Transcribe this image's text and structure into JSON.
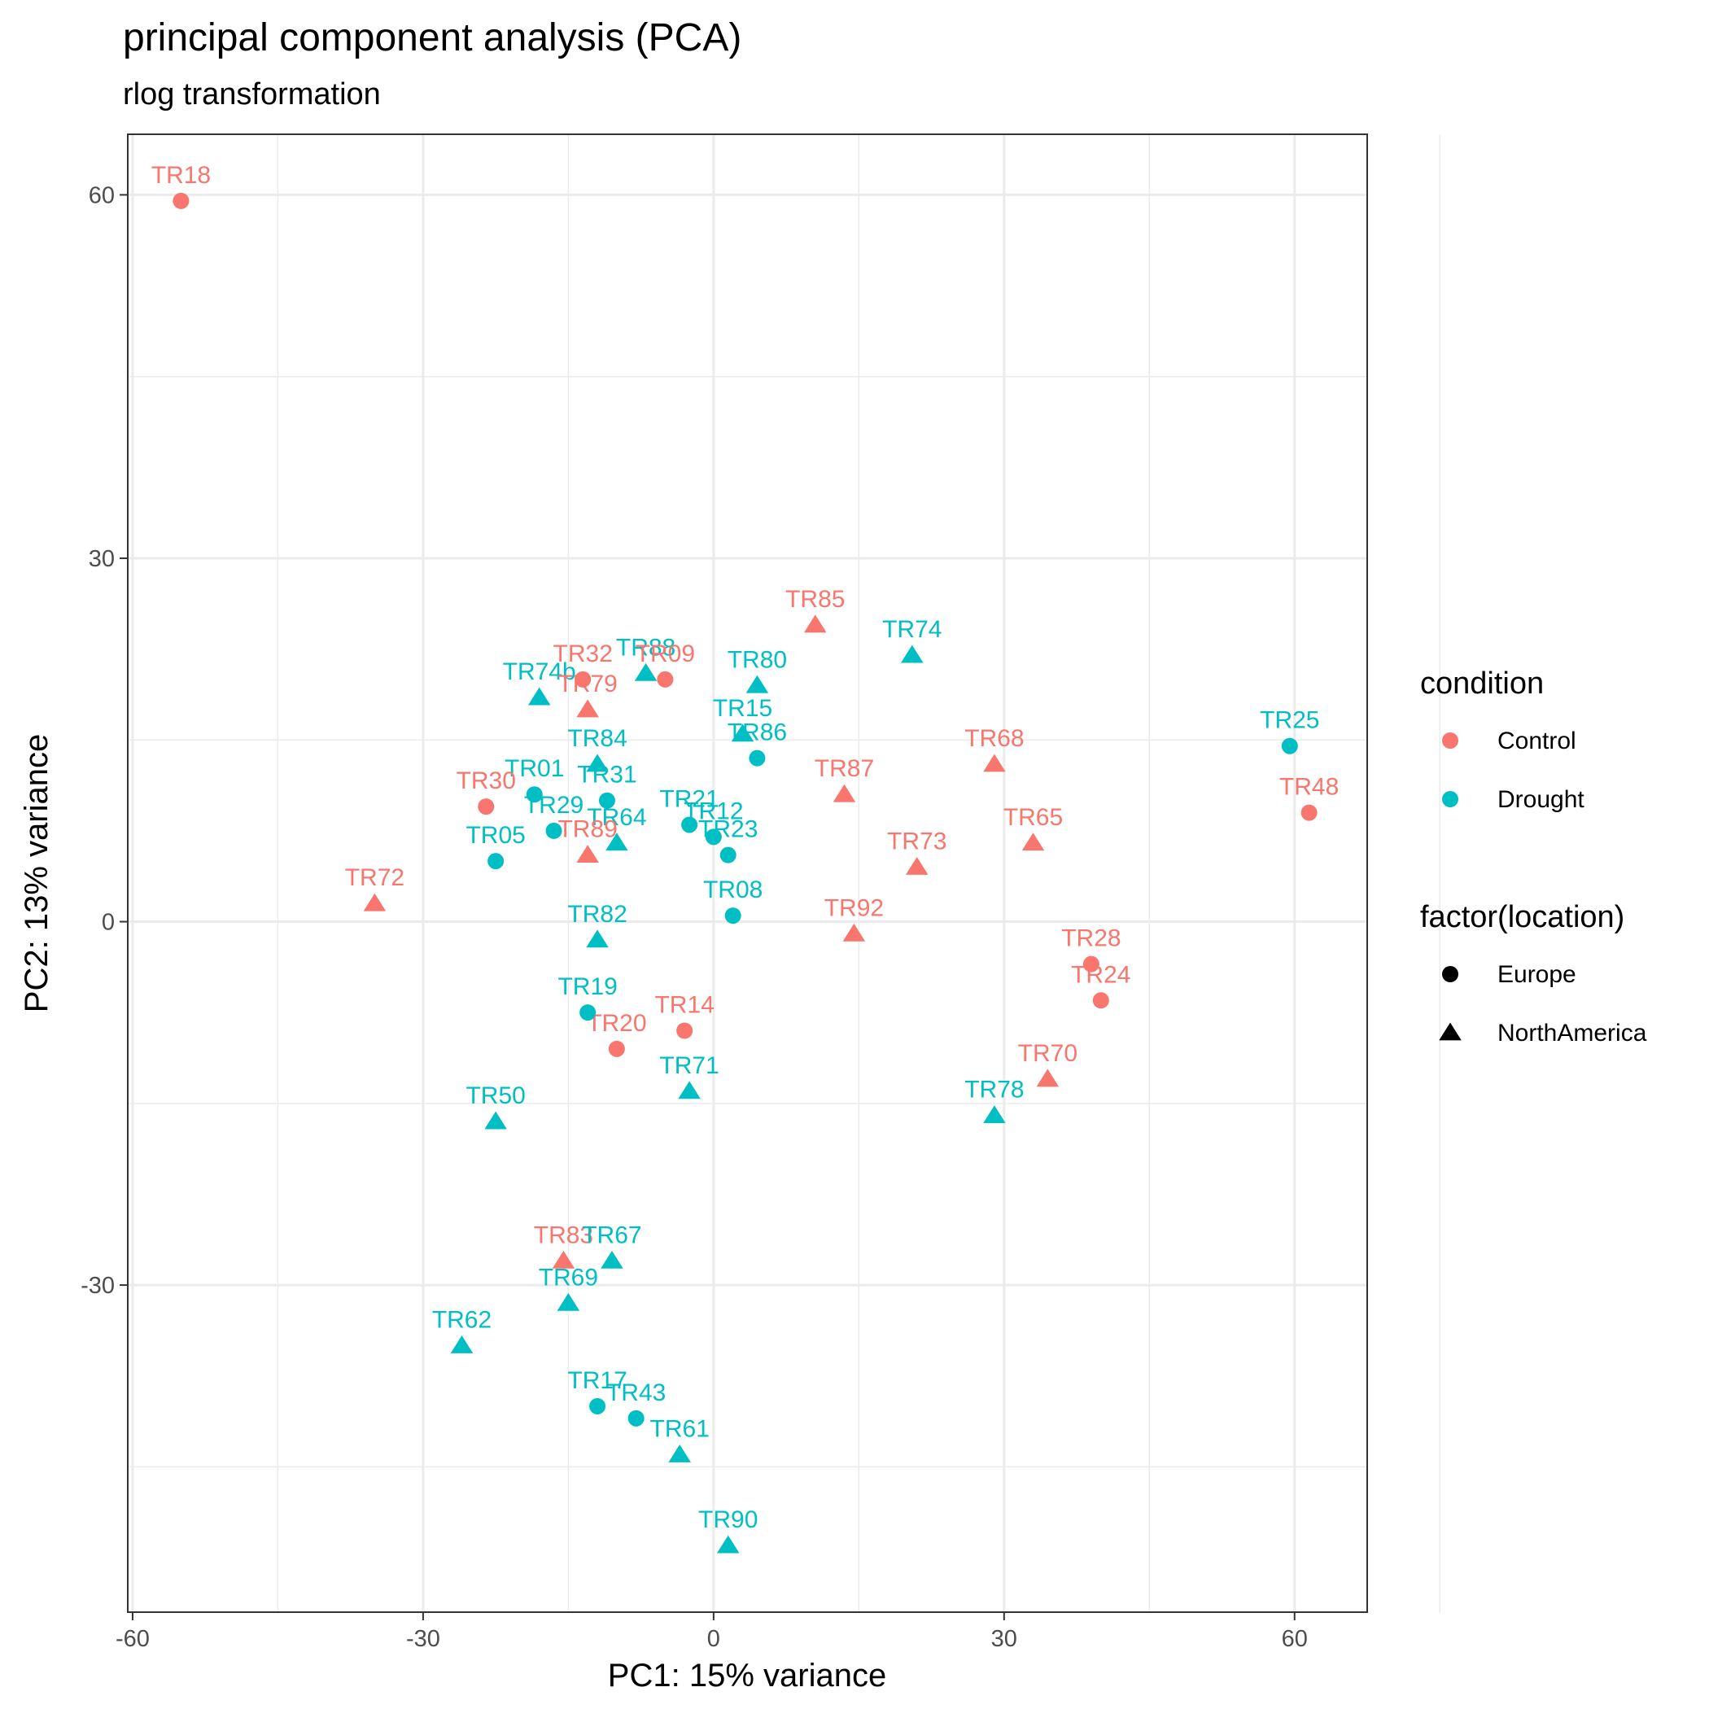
{
  "colors": {
    "Control": "#F8766D",
    "Drought": "#00BFC4"
  },
  "chart_data": {
    "type": "scatter",
    "title": "principal component analysis (PCA)",
    "subtitle": "rlog transformation",
    "xlabel": "PC1: 15% variance",
    "ylabel": "PC2: 13% variance",
    "xlim": [
      -60.5,
      67.5
    ],
    "ylim": [
      -57,
      65
    ],
    "xticks": [
      -60,
      -30,
      0,
      30,
      60
    ],
    "yticks": [
      -30,
      0,
      30,
      60
    ],
    "xtick_labels": [
      "-60",
      "-30",
      "0",
      "30",
      "60"
    ],
    "ytick_labels": [
      "-30",
      "0",
      "30",
      "60"
    ],
    "grid": true,
    "legend_position": "right",
    "legends": [
      {
        "title": "condition",
        "items": [
          {
            "label": "Control",
            "key": "Control"
          },
          {
            "label": "Drought",
            "key": "Drought"
          }
        ]
      },
      {
        "title": "factor(location)",
        "items": [
          {
            "label": "Europe",
            "shape": "circle"
          },
          {
            "label": "NorthAmerica",
            "shape": "triangle"
          }
        ]
      }
    ],
    "points": [
      {
        "label": "TR18",
        "x": -55.0,
        "y": 59.5,
        "condition": "Control",
        "location": "Europe"
      },
      {
        "label": "TR85",
        "x": 10.5,
        "y": 24.5,
        "condition": "Control",
        "location": "NorthAmerica"
      },
      {
        "label": "TR74",
        "x": 20.5,
        "y": 22.0,
        "condition": "Drought",
        "location": "NorthAmerica"
      },
      {
        "label": "TR32",
        "x": -13.5,
        "y": 20.0,
        "condition": "Control",
        "location": "Europe"
      },
      {
        "label": "TR88",
        "x": -7.0,
        "y": 20.5,
        "condition": "Drought",
        "location": "NorthAmerica"
      },
      {
        "label": "TR09",
        "x": -5.0,
        "y": 20.0,
        "condition": "Control",
        "location": "Europe"
      },
      {
        "label": "TR80",
        "x": 4.5,
        "y": 19.5,
        "condition": "Drought",
        "location": "NorthAmerica"
      },
      {
        "label": "TR74b",
        "x": -18.0,
        "y": 18.5,
        "condition": "Drought",
        "location": "NorthAmerica"
      },
      {
        "label": "TR79",
        "x": -13.0,
        "y": 17.5,
        "condition": "Control",
        "location": "NorthAmerica"
      },
      {
        "label": "TR15",
        "x": 3.0,
        "y": 15.5,
        "condition": "Drought",
        "location": "NorthAmerica"
      },
      {
        "label": "TR25",
        "x": 59.5,
        "y": 14.5,
        "condition": "Drought",
        "location": "Europe"
      },
      {
        "label": "TR86",
        "x": 4.5,
        "y": 13.5,
        "condition": "Drought",
        "location": "Europe"
      },
      {
        "label": "TR84",
        "x": -12.0,
        "y": 13.0,
        "condition": "Drought",
        "location": "NorthAmerica"
      },
      {
        "label": "TR68",
        "x": 29.0,
        "y": 13.0,
        "condition": "Control",
        "location": "NorthAmerica"
      },
      {
        "label": "TR87",
        "x": 13.5,
        "y": 10.5,
        "condition": "Control",
        "location": "NorthAmerica"
      },
      {
        "label": "TR01",
        "x": -18.5,
        "y": 10.5,
        "condition": "Drought",
        "location": "Europe"
      },
      {
        "label": "TR31",
        "x": -11.0,
        "y": 10.0,
        "condition": "Drought",
        "location": "Europe"
      },
      {
        "label": "TR30",
        "x": -23.5,
        "y": 9.5,
        "condition": "Control",
        "location": "Europe"
      },
      {
        "label": "TR48",
        "x": 61.5,
        "y": 9.0,
        "condition": "Control",
        "location": "Europe"
      },
      {
        "label": "TR21",
        "x": -2.5,
        "y": 8.0,
        "condition": "Drought",
        "location": "Europe"
      },
      {
        "label": "TR29",
        "x": -16.5,
        "y": 7.5,
        "condition": "Drought",
        "location": "Europe"
      },
      {
        "label": "TR12",
        "x": 0.0,
        "y": 7.0,
        "condition": "Drought",
        "location": "Europe"
      },
      {
        "label": "TR65",
        "x": 33.0,
        "y": 6.5,
        "condition": "Control",
        "location": "NorthAmerica"
      },
      {
        "label": "TR64",
        "x": -10.0,
        "y": 6.5,
        "condition": "Drought",
        "location": "NorthAmerica"
      },
      {
        "label": "TR89",
        "x": -13.0,
        "y": 5.5,
        "condition": "Control",
        "location": "NorthAmerica"
      },
      {
        "label": "TR05",
        "x": -22.5,
        "y": 5.0,
        "condition": "Drought",
        "location": "Europe"
      },
      {
        "label": "TR73",
        "x": 21.0,
        "y": 4.5,
        "condition": "Control",
        "location": "NorthAmerica"
      },
      {
        "label": "TR72",
        "x": -35.0,
        "y": 1.5,
        "condition": "Control",
        "location": "NorthAmerica"
      },
      {
        "label": "TR08",
        "x": 2.0,
        "y": 0.5,
        "condition": "Drought",
        "location": "Europe"
      },
      {
        "label": "TR23",
        "x": 1.5,
        "y": 5.5,
        "condition": "Drought",
        "location": "Europe"
      },
      {
        "label": "TR92",
        "x": 14.5,
        "y": -1.0,
        "condition": "Control",
        "location": "NorthAmerica"
      },
      {
        "label": "TR82",
        "x": -12.0,
        "y": -1.5,
        "condition": "Drought",
        "location": "NorthAmerica"
      },
      {
        "label": "TR28",
        "x": 39.0,
        "y": -3.5,
        "condition": "Control",
        "location": "Europe"
      },
      {
        "label": "TR24",
        "x": 40.0,
        "y": -6.5,
        "condition": "Control",
        "location": "Europe"
      },
      {
        "label": "TR19",
        "x": -13.0,
        "y": -7.5,
        "condition": "Drought",
        "location": "Europe"
      },
      {
        "label": "TR14",
        "x": -3.0,
        "y": -9.0,
        "condition": "Control",
        "location": "Europe"
      },
      {
        "label": "TR20",
        "x": -10.0,
        "y": -10.5,
        "condition": "Control",
        "location": "Europe"
      },
      {
        "label": "TR70",
        "x": 34.5,
        "y": -13.0,
        "condition": "Control",
        "location": "NorthAmerica"
      },
      {
        "label": "TR71",
        "x": -2.5,
        "y": -14.0,
        "condition": "Drought",
        "location": "NorthAmerica"
      },
      {
        "label": "TR78",
        "x": 29.0,
        "y": -16.0,
        "condition": "Drought",
        "location": "NorthAmerica"
      },
      {
        "label": "TR50",
        "x": -22.5,
        "y": -16.5,
        "condition": "Drought",
        "location": "NorthAmerica"
      },
      {
        "label": "TR83",
        "x": -15.5,
        "y": -28.0,
        "condition": "Control",
        "location": "NorthAmerica"
      },
      {
        "label": "TR67",
        "x": -10.5,
        "y": -28.0,
        "condition": "Drought",
        "location": "NorthAmerica"
      },
      {
        "label": "TR69",
        "x": -15.0,
        "y": -31.5,
        "condition": "Drought",
        "location": "NorthAmerica"
      },
      {
        "label": "TR62",
        "x": -26.0,
        "y": -35.0,
        "condition": "Drought",
        "location": "NorthAmerica"
      },
      {
        "label": "TR17",
        "x": -12.0,
        "y": -40.0,
        "condition": "Drought",
        "location": "Europe"
      },
      {
        "label": "TR43",
        "x": -8.0,
        "y": -41.0,
        "condition": "Drought",
        "location": "Europe"
      },
      {
        "label": "TR61",
        "x": -3.5,
        "y": -44.0,
        "condition": "Drought",
        "location": "NorthAmerica"
      },
      {
        "label": "TR90",
        "x": 1.5,
        "y": -51.5,
        "condition": "Drought",
        "location": "NorthAmerica"
      }
    ]
  }
}
